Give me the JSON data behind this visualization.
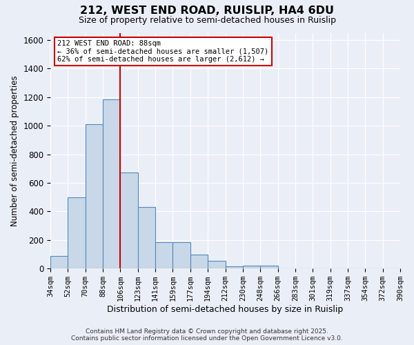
{
  "title": "212, WEST END ROAD, RUISLIP, HA4 6DU",
  "subtitle": "Size of property relative to semi-detached houses in Ruislip",
  "xlabel": "Distribution of semi-detached houses by size in Ruislip",
  "ylabel": "Number of semi-detached properties",
  "bins": [
    "34sqm",
    "52sqm",
    "70sqm",
    "88sqm",
    "106sqm",
    "123sqm",
    "141sqm",
    "159sqm",
    "177sqm",
    "194sqm",
    "212sqm",
    "230sqm",
    "248sqm",
    "266sqm",
    "283sqm",
    "301sqm",
    "319sqm",
    "337sqm",
    "354sqm",
    "372sqm",
    "390sqm"
  ],
  "values": [
    90,
    500,
    1010,
    1185,
    670,
    430,
    185,
    185,
    100,
    55,
    15,
    20,
    20,
    0,
    0,
    0,
    0,
    0,
    0,
    0
  ],
  "bar_color": "#c8d8e8",
  "bar_edge_color": "#5588bb",
  "red_line_bin_index": 3,
  "annotation_title": "212 WEST END ROAD: 88sqm",
  "annotation_line1": "← 36% of semi-detached houses are smaller (1,507)",
  "annotation_line2": "62% of semi-detached houses are larger (2,612) →",
  "annotation_box_color": "#ffffff",
  "annotation_box_edge": "#cc0000",
  "footer1": "Contains HM Land Registry data © Crown copyright and database right 2025.",
  "footer2": "Contains public sector information licensed under the Open Government Licence v3.0.",
  "bg_color": "#eaeff7",
  "plot_bg_color": "#eaeff7",
  "grid_color": "#ffffff",
  "ylim": [
    0,
    1650
  ],
  "yticks": [
    0,
    200,
    400,
    600,
    800,
    1000,
    1200,
    1400,
    1600
  ]
}
